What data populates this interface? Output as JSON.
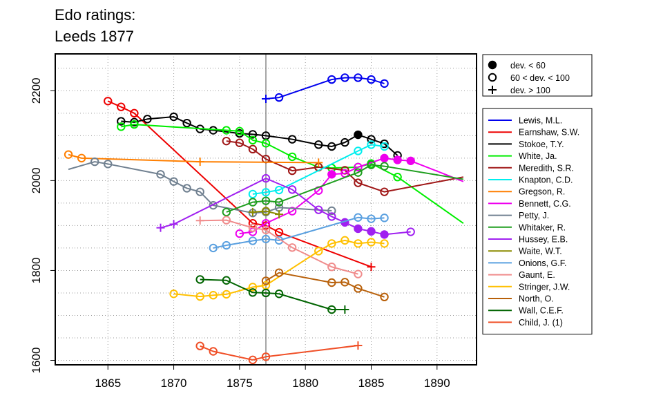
{
  "chart_data": {
    "type": "line",
    "title": [
      "Edo ratings:",
      "Leeds 1877"
    ],
    "xlabel": "",
    "ylabel": "",
    "xlim": [
      1861,
      1893
    ],
    "ylim": [
      1590,
      2282
    ],
    "xticks": [
      1865,
      1870,
      1875,
      1880,
      1885,
      1890
    ],
    "yticks": [
      1600,
      1800,
      2000,
      2200
    ],
    "grid": "dotted, at every 50 on y and every 5 on x",
    "reference_line_x": 1877,
    "marker_legend": {
      "position": "top-right",
      "entries": [
        {
          "marker": "filled-circle",
          "label": "dev. < 60"
        },
        {
          "marker": "open-circle",
          "label": "60 < dev. < 100"
        },
        {
          "marker": "plus",
          "label": "dev. > 100"
        }
      ]
    },
    "legend_position": "right",
    "series": [
      {
        "name": "Lewis, M.L.",
        "color": "#0000EE",
        "points": [
          [
            1877,
            2182,
            "p"
          ],
          [
            1878,
            2185,
            "o"
          ],
          [
            1882,
            2225,
            "o"
          ],
          [
            1883,
            2229,
            "o"
          ],
          [
            1884,
            2229,
            "o"
          ],
          [
            1885,
            2225,
            "o"
          ],
          [
            1886,
            2216,
            "o"
          ]
        ]
      },
      {
        "name": "Earnshaw, S.W.",
        "color": "#EE0000",
        "points": [
          [
            1865,
            2177,
            "o"
          ],
          [
            1866,
            2164,
            "o"
          ],
          [
            1867,
            2150,
            "o"
          ],
          [
            1876,
            1905,
            "o"
          ],
          [
            1877,
            1900,
            "o"
          ],
          [
            1878,
            1885,
            "o"
          ],
          [
            1885,
            1808,
            "p"
          ]
        ]
      },
      {
        "name": "Stokoe, T.Y.",
        "color": "#000000",
        "points": [
          [
            1866,
            2132,
            "o"
          ],
          [
            1867,
            2130,
            "o"
          ],
          [
            1868,
            2137,
            "o"
          ],
          [
            1870,
            2142,
            "o"
          ],
          [
            1871,
            2128,
            "o"
          ],
          [
            1872,
            2115,
            "o"
          ],
          [
            1873,
            2112,
            "o"
          ],
          [
            1875,
            2105,
            "o"
          ],
          [
            1876,
            2103,
            "o"
          ],
          [
            1877,
            2100,
            "o"
          ],
          [
            1879,
            2092,
            "o"
          ],
          [
            1881,
            2080,
            "o"
          ],
          [
            1882,
            2076,
            "o"
          ],
          [
            1883,
            2085,
            "o"
          ],
          [
            1884,
            2102,
            "f"
          ],
          [
            1885,
            2092,
            "o"
          ],
          [
            1886,
            2082,
            "o"
          ],
          [
            1887,
            2056,
            "o"
          ]
        ]
      },
      {
        "name": "White, Ja.",
        "color": "#00EE00",
        "points": [
          [
            1866,
            2120,
            "o"
          ],
          [
            1867,
            2125,
            "o"
          ],
          [
            1874,
            2112,
            "o"
          ],
          [
            1875,
            2110,
            "o"
          ],
          [
            1876,
            2090,
            "o"
          ],
          [
            1877,
            2083,
            "o"
          ],
          [
            1879,
            2053,
            "o"
          ],
          [
            1881,
            2030,
            "o"
          ],
          [
            1882,
            2028,
            "o"
          ],
          [
            1884,
            2030,
            "o"
          ],
          [
            1885,
            2038,
            "o"
          ],
          [
            1887,
            2008,
            "o"
          ],
          [
            1892,
            1905,
            "l"
          ]
        ]
      },
      {
        "name": "Meredith, S.R.",
        "color": "#A01818",
        "points": [
          [
            1874,
            2088,
            "o"
          ],
          [
            1875,
            2084,
            "o"
          ],
          [
            1876,
            2070,
            "o"
          ],
          [
            1877,
            2048,
            "o"
          ],
          [
            1879,
            2022,
            "o"
          ],
          [
            1881,
            2030,
            "o"
          ],
          [
            1883,
            2023,
            "o"
          ],
          [
            1884,
            1995,
            "o"
          ],
          [
            1886,
            1975,
            "o"
          ],
          [
            1892,
            2008,
            "l"
          ]
        ]
      },
      {
        "name": "Knapton, C.D.",
        "color": "#00EEEE",
        "points": [
          [
            1876,
            1970,
            "o"
          ],
          [
            1877,
            1974,
            "o"
          ],
          [
            1878,
            1979,
            "o"
          ],
          [
            1884,
            2066,
            "o"
          ],
          [
            1885,
            2080,
            "o"
          ],
          [
            1886,
            2076,
            "o"
          ]
        ]
      },
      {
        "name": "Gregson, R.",
        "color": "#FF7F00",
        "points": [
          [
            1862,
            2058,
            "o"
          ],
          [
            1863,
            2050,
            "o"
          ],
          [
            1872,
            2042,
            "p"
          ],
          [
            1881,
            2040,
            "p"
          ]
        ]
      },
      {
        "name": "Bennett, C.G.",
        "color": "#EE00EE",
        "points": [
          [
            1875,
            1882,
            "o"
          ],
          [
            1876,
            1886,
            "o"
          ],
          [
            1877,
            1905,
            "o"
          ],
          [
            1879,
            1932,
            "o"
          ],
          [
            1881,
            1978,
            "o"
          ],
          [
            1882,
            2014,
            "f"
          ],
          [
            1883,
            2016,
            "o"
          ],
          [
            1884,
            2030,
            "o"
          ],
          [
            1886,
            2050,
            "f"
          ],
          [
            1887,
            2046,
            "f"
          ],
          [
            1888,
            2044,
            "f"
          ],
          [
            1892,
            1998,
            "l"
          ]
        ]
      },
      {
        "name": "Petty, J.",
        "color": "#708090",
        "points": [
          [
            1862,
            2025,
            "l"
          ],
          [
            1864,
            2042,
            "o"
          ],
          [
            1865,
            2037,
            "o"
          ],
          [
            1869,
            2014,
            "o"
          ],
          [
            1870,
            1998,
            "o"
          ],
          [
            1871,
            1983,
            "o"
          ],
          [
            1872,
            1975,
            "o"
          ],
          [
            1873,
            1945,
            "o"
          ],
          [
            1876,
            1928,
            "o"
          ],
          [
            1877,
            1930,
            "o"
          ],
          [
            1878,
            1940,
            "o"
          ],
          [
            1882,
            1933,
            "o"
          ]
        ]
      },
      {
        "name": "Whitaker, R.",
        "color": "#1E9E1E",
        "points": [
          [
            1874,
            1930,
            "o"
          ],
          [
            1876,
            1952,
            "o"
          ],
          [
            1877,
            1955,
            "o"
          ],
          [
            1878,
            1952,
            "o"
          ],
          [
            1884,
            2018,
            "o"
          ],
          [
            1885,
            2035,
            "o"
          ],
          [
            1886,
            2032,
            "o"
          ],
          [
            1892,
            2003,
            "l"
          ]
        ]
      },
      {
        "name": "Hussey, E.B.",
        "color": "#A020F0",
        "points": [
          [
            1869,
            1895,
            "p"
          ],
          [
            1870,
            1903,
            "p"
          ],
          [
            1877,
            2005,
            "o"
          ],
          [
            1879,
            1980,
            "o"
          ],
          [
            1881,
            1935,
            "o"
          ],
          [
            1882,
            1920,
            "o"
          ],
          [
            1883,
            1907,
            "f"
          ],
          [
            1884,
            1893,
            "f"
          ],
          [
            1885,
            1887,
            "f"
          ],
          [
            1886,
            1880,
            "f"
          ],
          [
            1888,
            1886,
            "o"
          ]
        ]
      },
      {
        "name": "Waite, W.T.",
        "color": "#8B8B00",
        "points": [
          [
            1876,
            1930,
            "p"
          ],
          [
            1877,
            1932,
            "o"
          ],
          [
            1878,
            1925,
            "p"
          ]
        ]
      },
      {
        "name": "Onions, G.F.",
        "color": "#5AA0E0",
        "points": [
          [
            1873,
            1850,
            "o"
          ],
          [
            1874,
            1856,
            "o"
          ],
          [
            1876,
            1866,
            "o"
          ],
          [
            1877,
            1870,
            "o"
          ],
          [
            1878,
            1867,
            "o"
          ],
          [
            1884,
            1918,
            "o"
          ],
          [
            1885,
            1915,
            "o"
          ],
          [
            1886,
            1917,
            "o"
          ]
        ]
      },
      {
        "name": "Gaunt, E.",
        "color": "#F08C8C",
        "points": [
          [
            1872,
            1911,
            "p"
          ],
          [
            1874,
            1912,
            "o"
          ],
          [
            1876,
            1895,
            "o"
          ],
          [
            1877,
            1890,
            "o"
          ],
          [
            1879,
            1851,
            "o"
          ],
          [
            1882,
            1808,
            "o"
          ],
          [
            1884,
            1792,
            "o"
          ]
        ]
      },
      {
        "name": "Stringer, J.W.",
        "color": "#FFC000",
        "points": [
          [
            1870,
            1748,
            "o"
          ],
          [
            1872,
            1742,
            "o"
          ],
          [
            1873,
            1745,
            "o"
          ],
          [
            1874,
            1747,
            "o"
          ],
          [
            1876,
            1763,
            "o"
          ],
          [
            1877,
            1767,
            "o"
          ],
          [
            1881,
            1843,
            "o"
          ],
          [
            1882,
            1860,
            "o"
          ],
          [
            1883,
            1867,
            "o"
          ],
          [
            1884,
            1860,
            "o"
          ],
          [
            1885,
            1863,
            "o"
          ],
          [
            1886,
            1860,
            "o"
          ]
        ]
      },
      {
        "name": "North, O.",
        "color": "#B8600A",
        "points": [
          [
            1877,
            1777,
            "o"
          ],
          [
            1878,
            1795,
            "o"
          ],
          [
            1882,
            1773,
            "o"
          ],
          [
            1883,
            1774,
            "o"
          ],
          [
            1884,
            1760,
            "o"
          ],
          [
            1886,
            1741,
            "o"
          ]
        ]
      },
      {
        "name": "Wall, C.E.F.",
        "color": "#006400",
        "points": [
          [
            1872,
            1780,
            "o"
          ],
          [
            1874,
            1778,
            "o"
          ],
          [
            1876,
            1751,
            "o"
          ],
          [
            1877,
            1750,
            "o"
          ],
          [
            1878,
            1748,
            "o"
          ],
          [
            1882,
            1713,
            "o"
          ],
          [
            1883,
            1713,
            "p"
          ]
        ]
      },
      {
        "name": "Child, J. (1)",
        "color": "#F05028",
        "points": [
          [
            1872,
            1632,
            "o"
          ],
          [
            1873,
            1620,
            "o"
          ],
          [
            1876,
            1601,
            "o"
          ],
          [
            1877,
            1608,
            "o"
          ],
          [
            1884,
            1633,
            "p"
          ]
        ]
      }
    ]
  }
}
